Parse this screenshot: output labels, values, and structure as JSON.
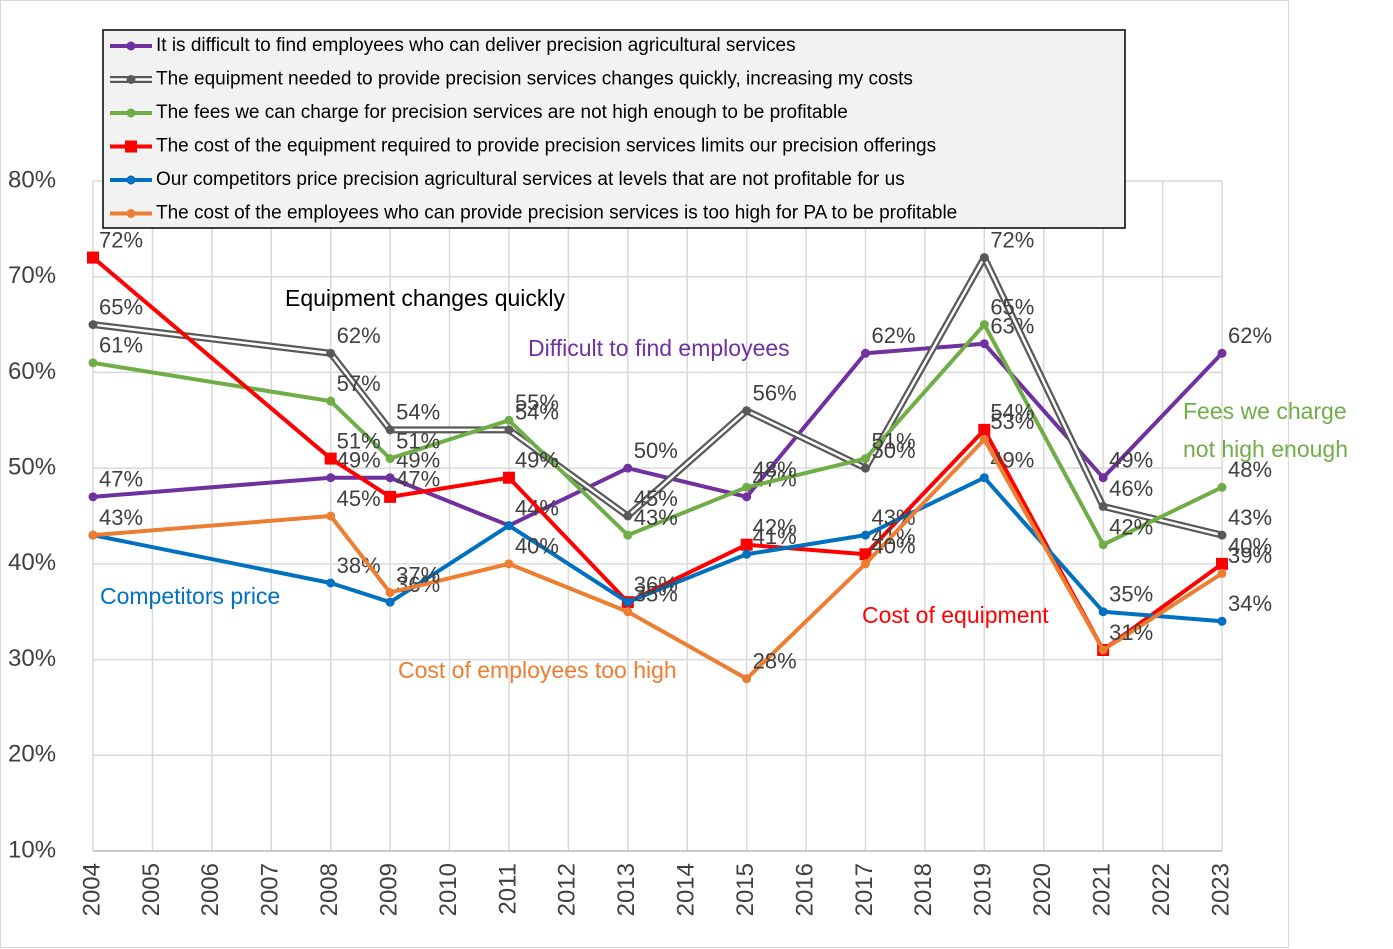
{
  "chart_data": {
    "type": "line",
    "x": [
      2004,
      2008,
      2009,
      2011,
      2013,
      2015,
      2017,
      2019,
      2021,
      2023
    ],
    "xlim": [
      2004,
      2023
    ],
    "xticks": [
      2004,
      2005,
      2006,
      2007,
      2008,
      2009,
      2010,
      2011,
      2012,
      2013,
      2014,
      2015,
      2016,
      2017,
      2018,
      2019,
      2020,
      2021,
      2022,
      2023
    ],
    "ylim": [
      10,
      80
    ],
    "yticks": [
      {
        "value": 10,
        "label": "10%"
      },
      {
        "value": 20,
        "label": "20%"
      },
      {
        "value": 30,
        "label": "30%"
      },
      {
        "value": 40,
        "label": "40%"
      },
      {
        "value": 50,
        "label": "50%"
      },
      {
        "value": 60,
        "label": "60%"
      },
      {
        "value": 70,
        "label": "70%"
      },
      {
        "value": 80,
        "label": "80%"
      }
    ],
    "grid": true,
    "series": [
      {
        "name": "It is difficult to find employees who can deliver precision agricultural services",
        "color": "#7030a0",
        "marker": "circle",
        "values": [
          47,
          49,
          49,
          44,
          50,
          47,
          62,
          63,
          49,
          62
        ],
        "value_labels": [
          "47%",
          "49%",
          "49%",
          "44%",
          "50%",
          "47%",
          "62%",
          "63%",
          "49%",
          "62%"
        ]
      },
      {
        "name": "The equipment needed to provide precision services changes quickly, increasing my costs",
        "color": "#595959",
        "marker": "circle",
        "double": true,
        "values": [
          65,
          62,
          54,
          54,
          45,
          56,
          50,
          72,
          46,
          43
        ],
        "value_labels": [
          "65%",
          "62%",
          "54%",
          "54%",
          "45%",
          "56%",
          "50%",
          "72%",
          "46%",
          "43%"
        ]
      },
      {
        "name": "The fees we can charge for precision services are not high enough to be profitable",
        "color": "#70ad47",
        "marker": "circle",
        "values": [
          61,
          57,
          51,
          55,
          43,
          48,
          51,
          65,
          42,
          48
        ],
        "value_labels": [
          "61%",
          "57%",
          "51%",
          "55%",
          "43%",
          "48%",
          "51%",
          "65%",
          "42%",
          "48%"
        ]
      },
      {
        "name": "The cost of the equipment required to provide precision services limits our precision offerings",
        "color": "#ff0000",
        "marker": "square",
        "values": [
          72,
          51,
          47,
          49,
          36,
          42,
          41,
          54,
          31,
          40
        ],
        "value_labels": [
          "72%",
          "51%",
          "47%",
          "49%",
          null,
          "42%",
          "41%",
          "54%",
          null,
          "40%"
        ]
      },
      {
        "name": "Our competitors price precision agricultural services at levels that are not profitable for us",
        "color": "#0070c0",
        "marker": "circle",
        "values": [
          43,
          38,
          36,
          44,
          36,
          41,
          43,
          49,
          35,
          34
        ],
        "value_labels": [
          null,
          "38%",
          "36%",
          null,
          "36%",
          "41%",
          "43%",
          "49%",
          "35%",
          "34%"
        ]
      },
      {
        "name": "The cost of the employees who can provide precision services is too high for PA to be profitable",
        "color": "#ed7d31",
        "marker": "circle",
        "values": [
          43,
          45,
          37,
          40,
          35,
          28,
          40,
          53,
          31,
          39
        ],
        "value_labels": [
          "43%",
          "45%",
          "37%",
          "40%",
          "35%",
          "28%",
          "40%",
          "53%",
          "31%",
          "39%"
        ]
      }
    ],
    "annotations": [
      {
        "text": "Equipment changes quickly",
        "color": "#000000"
      },
      {
        "text": "Difficult to find employees",
        "color": "#7030a0"
      },
      {
        "text": "Competitors price",
        "color": "#0070c0"
      },
      {
        "text": "Cost of employees too high",
        "color": "#ed7d31"
      },
      {
        "text": "Cost of equipment",
        "color": "#ff0000"
      },
      {
        "text": "Fees we charge",
        "color": "#70ad47"
      },
      {
        "text": "not high enough",
        "color": "#70ad47"
      }
    ]
  }
}
